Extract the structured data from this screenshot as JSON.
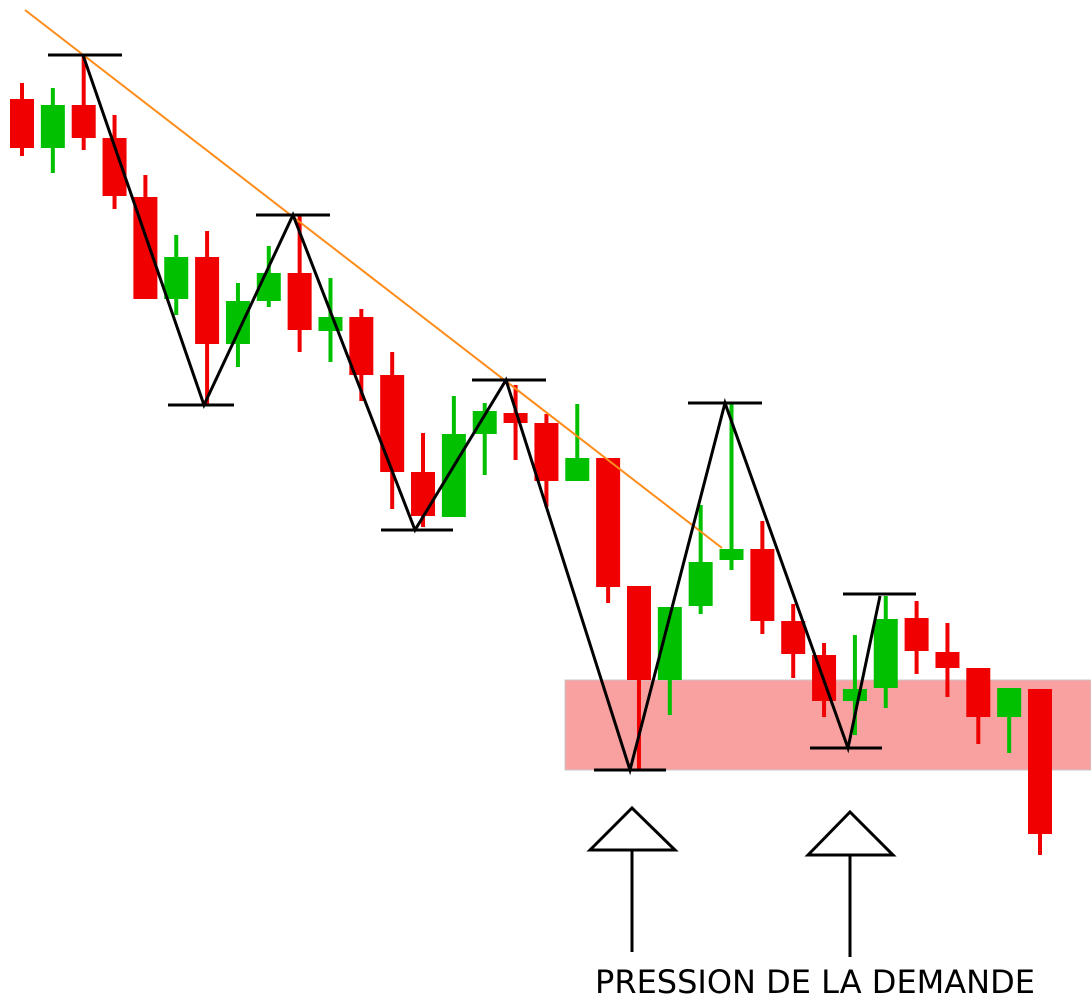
{
  "chart_data": {
    "type": "candlestick",
    "annotation": "PRESSION DE LA DEMANDE",
    "up_color": "#00c000",
    "down_color": "#f00000",
    "ylim": [
      0,
      1000
    ],
    "open": [
      901,
      852,
      895,
      862,
      803,
      701,
      743,
      656,
      699,
      727,
      669,
      683,
      625,
      528,
      483,
      566,
      587,
      577,
      519,
      542,
      414,
      320,
      394,
      440,
      451,
      379,
      345,
      299,
      312,
      382,
      348,
      332,
      283,
      311
    ],
    "high": [
      917,
      912,
      945,
      885,
      825,
      765,
      769,
      717,
      754,
      785,
      722,
      691,
      648,
      567,
      604,
      597,
      615,
      586,
      596,
      542,
      414,
      393,
      495,
      597,
      479,
      396,
      357,
      365,
      404,
      399,
      377,
      332,
      312,
      311
    ],
    "low": [
      844,
      827,
      850,
      791,
      701,
      685,
      595,
      633,
      693,
      648,
      638,
      599,
      491,
      473,
      483,
      525,
      540,
      493,
      519,
      397,
      230,
      285,
      386,
      430,
      366,
      322,
      283,
      265,
      292,
      326,
      303,
      256,
      247,
      145
    ],
    "close": [
      852,
      895,
      862,
      804,
      701,
      743,
      656,
      699,
      727,
      670,
      683,
      625,
      528,
      484,
      566,
      589,
      577,
      519,
      542,
      413,
      320,
      393,
      438,
      451,
      379,
      346,
      299,
      311,
      381,
      349,
      332,
      283,
      312,
      166
    ]
  }
}
